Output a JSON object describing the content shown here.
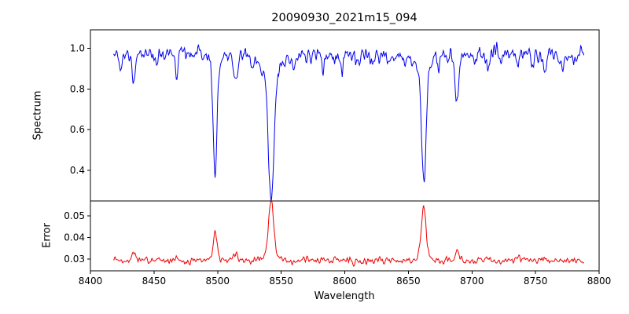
{
  "title": "20090930_2021m15_094",
  "chart_data": {
    "type": "line",
    "title": "20090930_2021m15_094",
    "xlabel": "Wavelength",
    "legend": "none",
    "grid": false,
    "x_axis": {
      "min": 8400,
      "max": 8800,
      "ticks": [
        {
          "value": 8400,
          "label": "8400"
        },
        {
          "value": 8450,
          "label": "8450"
        },
        {
          "value": 8500,
          "label": "8500"
        },
        {
          "value": 8550,
          "label": "8550"
        },
        {
          "value": 8600,
          "label": "8600"
        },
        {
          "value": 8650,
          "label": "8650"
        },
        {
          "value": 8700,
          "label": "8700"
        },
        {
          "value": 8750,
          "label": "8750"
        },
        {
          "value": 8800,
          "label": "8800"
        }
      ]
    },
    "x_range": [
      8418,
      8788
    ],
    "x_step": 0.5,
    "panels": [
      {
        "name": "spectrum",
        "ylabel": "Spectrum",
        "color": "#0000ee",
        "ylim": [
          0.25,
          1.09
        ],
        "yticks": [
          {
            "value": 0.4,
            "label": "0.4"
          },
          {
            "value": 0.6,
            "label": "0.6"
          },
          {
            "value": 0.8,
            "label": "0.8"
          },
          {
            "value": 1.0,
            "label": "1.0"
          }
        ],
        "continuum": 0.965,
        "noise_sigma": 0.018,
        "seed": 12345,
        "wiggle": {
          "amp": 0.006,
          "period": 40
        },
        "absorption_lines": [
          {
            "center": 8498.0,
            "depth": 0.52,
            "width": 1.5
          },
          {
            "center": 8498.0,
            "depth": 0.05,
            "width": 4.5
          },
          {
            "center": 8542.1,
            "depth": 0.6,
            "width": 2.2
          },
          {
            "center": 8542.1,
            "depth": 0.1,
            "width": 6.5
          },
          {
            "center": 8662.1,
            "depth": 0.54,
            "width": 1.8
          },
          {
            "center": 8662.1,
            "depth": 0.08,
            "width": 5.5
          },
          {
            "center": 8424.0,
            "depth": 0.09,
            "width": 1.2
          },
          {
            "center": 8434.0,
            "depth": 0.16,
            "width": 1.4
          },
          {
            "center": 8452.0,
            "depth": 0.05,
            "width": 1.1
          },
          {
            "center": 8468.0,
            "depth": 0.09,
            "width": 1.3
          },
          {
            "center": 8482.0,
            "depth": 0.04,
            "width": 1.0
          },
          {
            "center": 8514.0,
            "depth": 0.13,
            "width": 1.4
          },
          {
            "center": 8527.0,
            "depth": 0.05,
            "width": 1.1
          },
          {
            "center": 8560.0,
            "depth": 0.04,
            "width": 1.0
          },
          {
            "center": 8583.0,
            "depth": 0.06,
            "width": 1.1
          },
          {
            "center": 8598.0,
            "depth": 0.05,
            "width": 1.1
          },
          {
            "center": 8611.0,
            "depth": 0.04,
            "width": 1.0
          },
          {
            "center": 8621.0,
            "depth": 0.05,
            "width": 1.1
          },
          {
            "center": 8634.0,
            "depth": 0.04,
            "width": 1.0
          },
          {
            "center": 8648.0,
            "depth": 0.04,
            "width": 1.0
          },
          {
            "center": 8674.0,
            "depth": 0.07,
            "width": 1.1
          },
          {
            "center": 8688.0,
            "depth": 0.23,
            "width": 1.5
          },
          {
            "center": 8702.0,
            "depth": 0.04,
            "width": 1.0
          },
          {
            "center": 8713.0,
            "depth": 0.07,
            "width": 1.1
          },
          {
            "center": 8736.0,
            "depth": 0.08,
            "width": 1.2
          },
          {
            "center": 8747.0,
            "depth": 0.05,
            "width": 1.0
          },
          {
            "center": 8757.0,
            "depth": 0.06,
            "width": 1.1
          },
          {
            "center": 8772.0,
            "depth": 0.07,
            "width": 1.1
          }
        ]
      },
      {
        "name": "error",
        "ylabel": "Error",
        "color": "#ee0000",
        "ylim": [
          0.0245,
          0.057
        ],
        "yticks": [
          {
            "value": 0.03,
            "label": "0.03"
          },
          {
            "value": 0.04,
            "label": "0.04"
          },
          {
            "value": 0.05,
            "label": "0.05"
          }
        ],
        "baseline": 0.0292,
        "noise_sigma": 0.0008,
        "seed": 99,
        "emission_peaks": [
          {
            "center": 8434.0,
            "height": 0.004,
            "width": 1.6
          },
          {
            "center": 8468.0,
            "height": 0.002,
            "width": 1.4
          },
          {
            "center": 8498.0,
            "height": 0.0135,
            "width": 1.6
          },
          {
            "center": 8514.0,
            "height": 0.0032,
            "width": 1.5
          },
          {
            "center": 8542.1,
            "height": 0.0245,
            "width": 2.0
          },
          {
            "center": 8542.1,
            "height": 0.003,
            "width": 5.0
          },
          {
            "center": 8583.0,
            "height": 0.0015,
            "width": 1.2
          },
          {
            "center": 8662.1,
            "height": 0.0225,
            "width": 1.7
          },
          {
            "center": 8662.1,
            "height": 0.003,
            "width": 4.5
          },
          {
            "center": 8688.0,
            "height": 0.0042,
            "width": 1.5
          },
          {
            "center": 8713.0,
            "height": 0.0015,
            "width": 1.2
          },
          {
            "center": 8736.0,
            "height": 0.002,
            "width": 1.3
          },
          {
            "center": 8757.0,
            "height": 0.0015,
            "width": 1.2
          }
        ]
      }
    ]
  }
}
